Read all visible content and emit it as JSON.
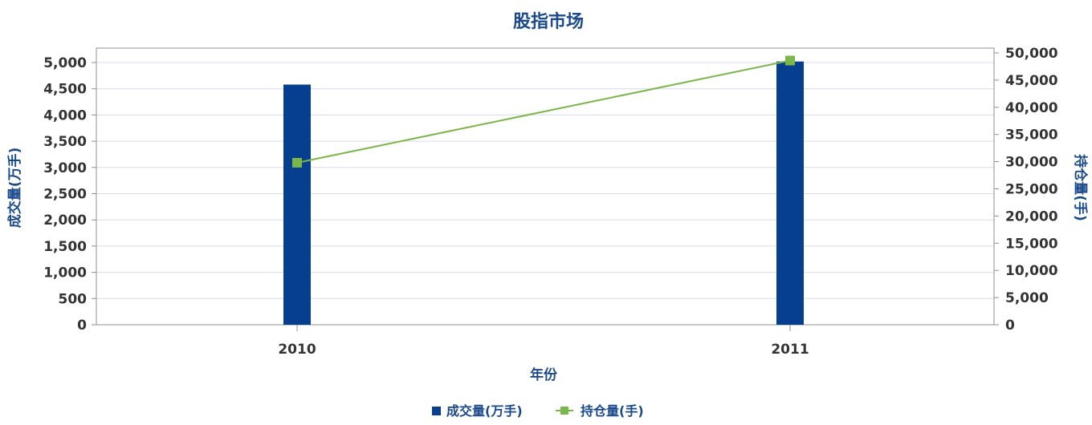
{
  "colors": {
    "bar": "#063f8f",
    "line": "#7ab648",
    "axis_title": "#1a4a8c",
    "tick": "#333333",
    "grid": "#d7dcec",
    "frame": "#909090"
  },
  "chart_data": {
    "type": "bar",
    "title": "股指市场",
    "xlabel": "年份",
    "ylabel": "成交量(万手)",
    "ylabel_right": "持仓量(手)",
    "categories": [
      "2010",
      "2011"
    ],
    "series": [
      {
        "name": "成交量(万手)",
        "type": "bar",
        "axis": "left",
        "values": [
          4580,
          5020
        ]
      },
      {
        "name": "持仓量(手)",
        "type": "line",
        "axis": "right",
        "values": [
          29800,
          48600
        ]
      }
    ],
    "ylim": [
      0,
      5000
    ],
    "ylim_right": [
      0,
      50000
    ],
    "y_ticks": [
      "0",
      "500",
      "1,000",
      "1,500",
      "2,000",
      "2,500",
      "3,000",
      "3,500",
      "4,000",
      "4,500",
      "5,000"
    ],
    "y_ticks_right": [
      "0",
      "5,000",
      "10,000",
      "15,000",
      "20,000",
      "25,000",
      "30,000",
      "35,000",
      "40,000",
      "45,000",
      "50,000"
    ],
    "grid": true,
    "legend_position": "bottom"
  }
}
